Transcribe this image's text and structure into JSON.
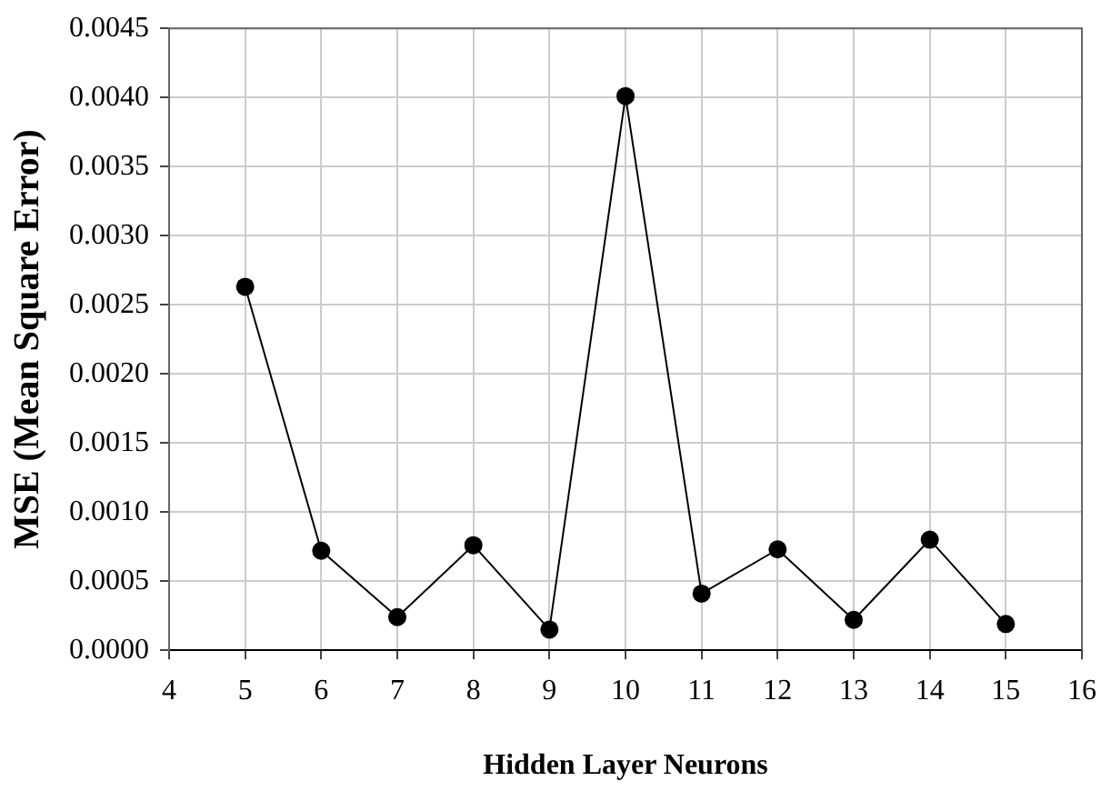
{
  "chart_data": {
    "type": "line",
    "xlabel": "Hidden Layer Neurons",
    "ylabel": "MSE (Mean Square Error)",
    "x": [
      5,
      6,
      7,
      8,
      9,
      10,
      11,
      12,
      13,
      14,
      15
    ],
    "series": [
      {
        "color": "#000000",
        "values": [
          0.00263,
          0.00072,
          0.00024,
          0.00076,
          0.00015,
          0.00401,
          0.00041,
          0.00073,
          0.00022,
          0.0008,
          0.00019
        ]
      }
    ],
    "xlim": [
      4,
      16
    ],
    "xticks": [
      4,
      5,
      6,
      7,
      8,
      9,
      10,
      11,
      12,
      13,
      14,
      15,
      16
    ],
    "ylim": [
      0,
      0.0045
    ],
    "yticks": [
      {
        "value": 0,
        "label": "0.0000"
      },
      {
        "value": 0.0005,
        "label": "0.0005"
      },
      {
        "value": 0.001,
        "label": "0.0010"
      },
      {
        "value": 0.0015,
        "label": "0.0015"
      },
      {
        "value": 0.002,
        "label": "0.0020"
      },
      {
        "value": 0.0025,
        "label": "0.0025"
      },
      {
        "value": 0.003,
        "label": "0.0030"
      },
      {
        "value": 0.0035,
        "label": "0.0035"
      },
      {
        "value": 0.004,
        "label": "0.0040"
      },
      {
        "value": 0.0045,
        "label": "0.0045"
      }
    ],
    "grid": true,
    "legend": false,
    "marker": "circle",
    "line_style": "solid"
  }
}
